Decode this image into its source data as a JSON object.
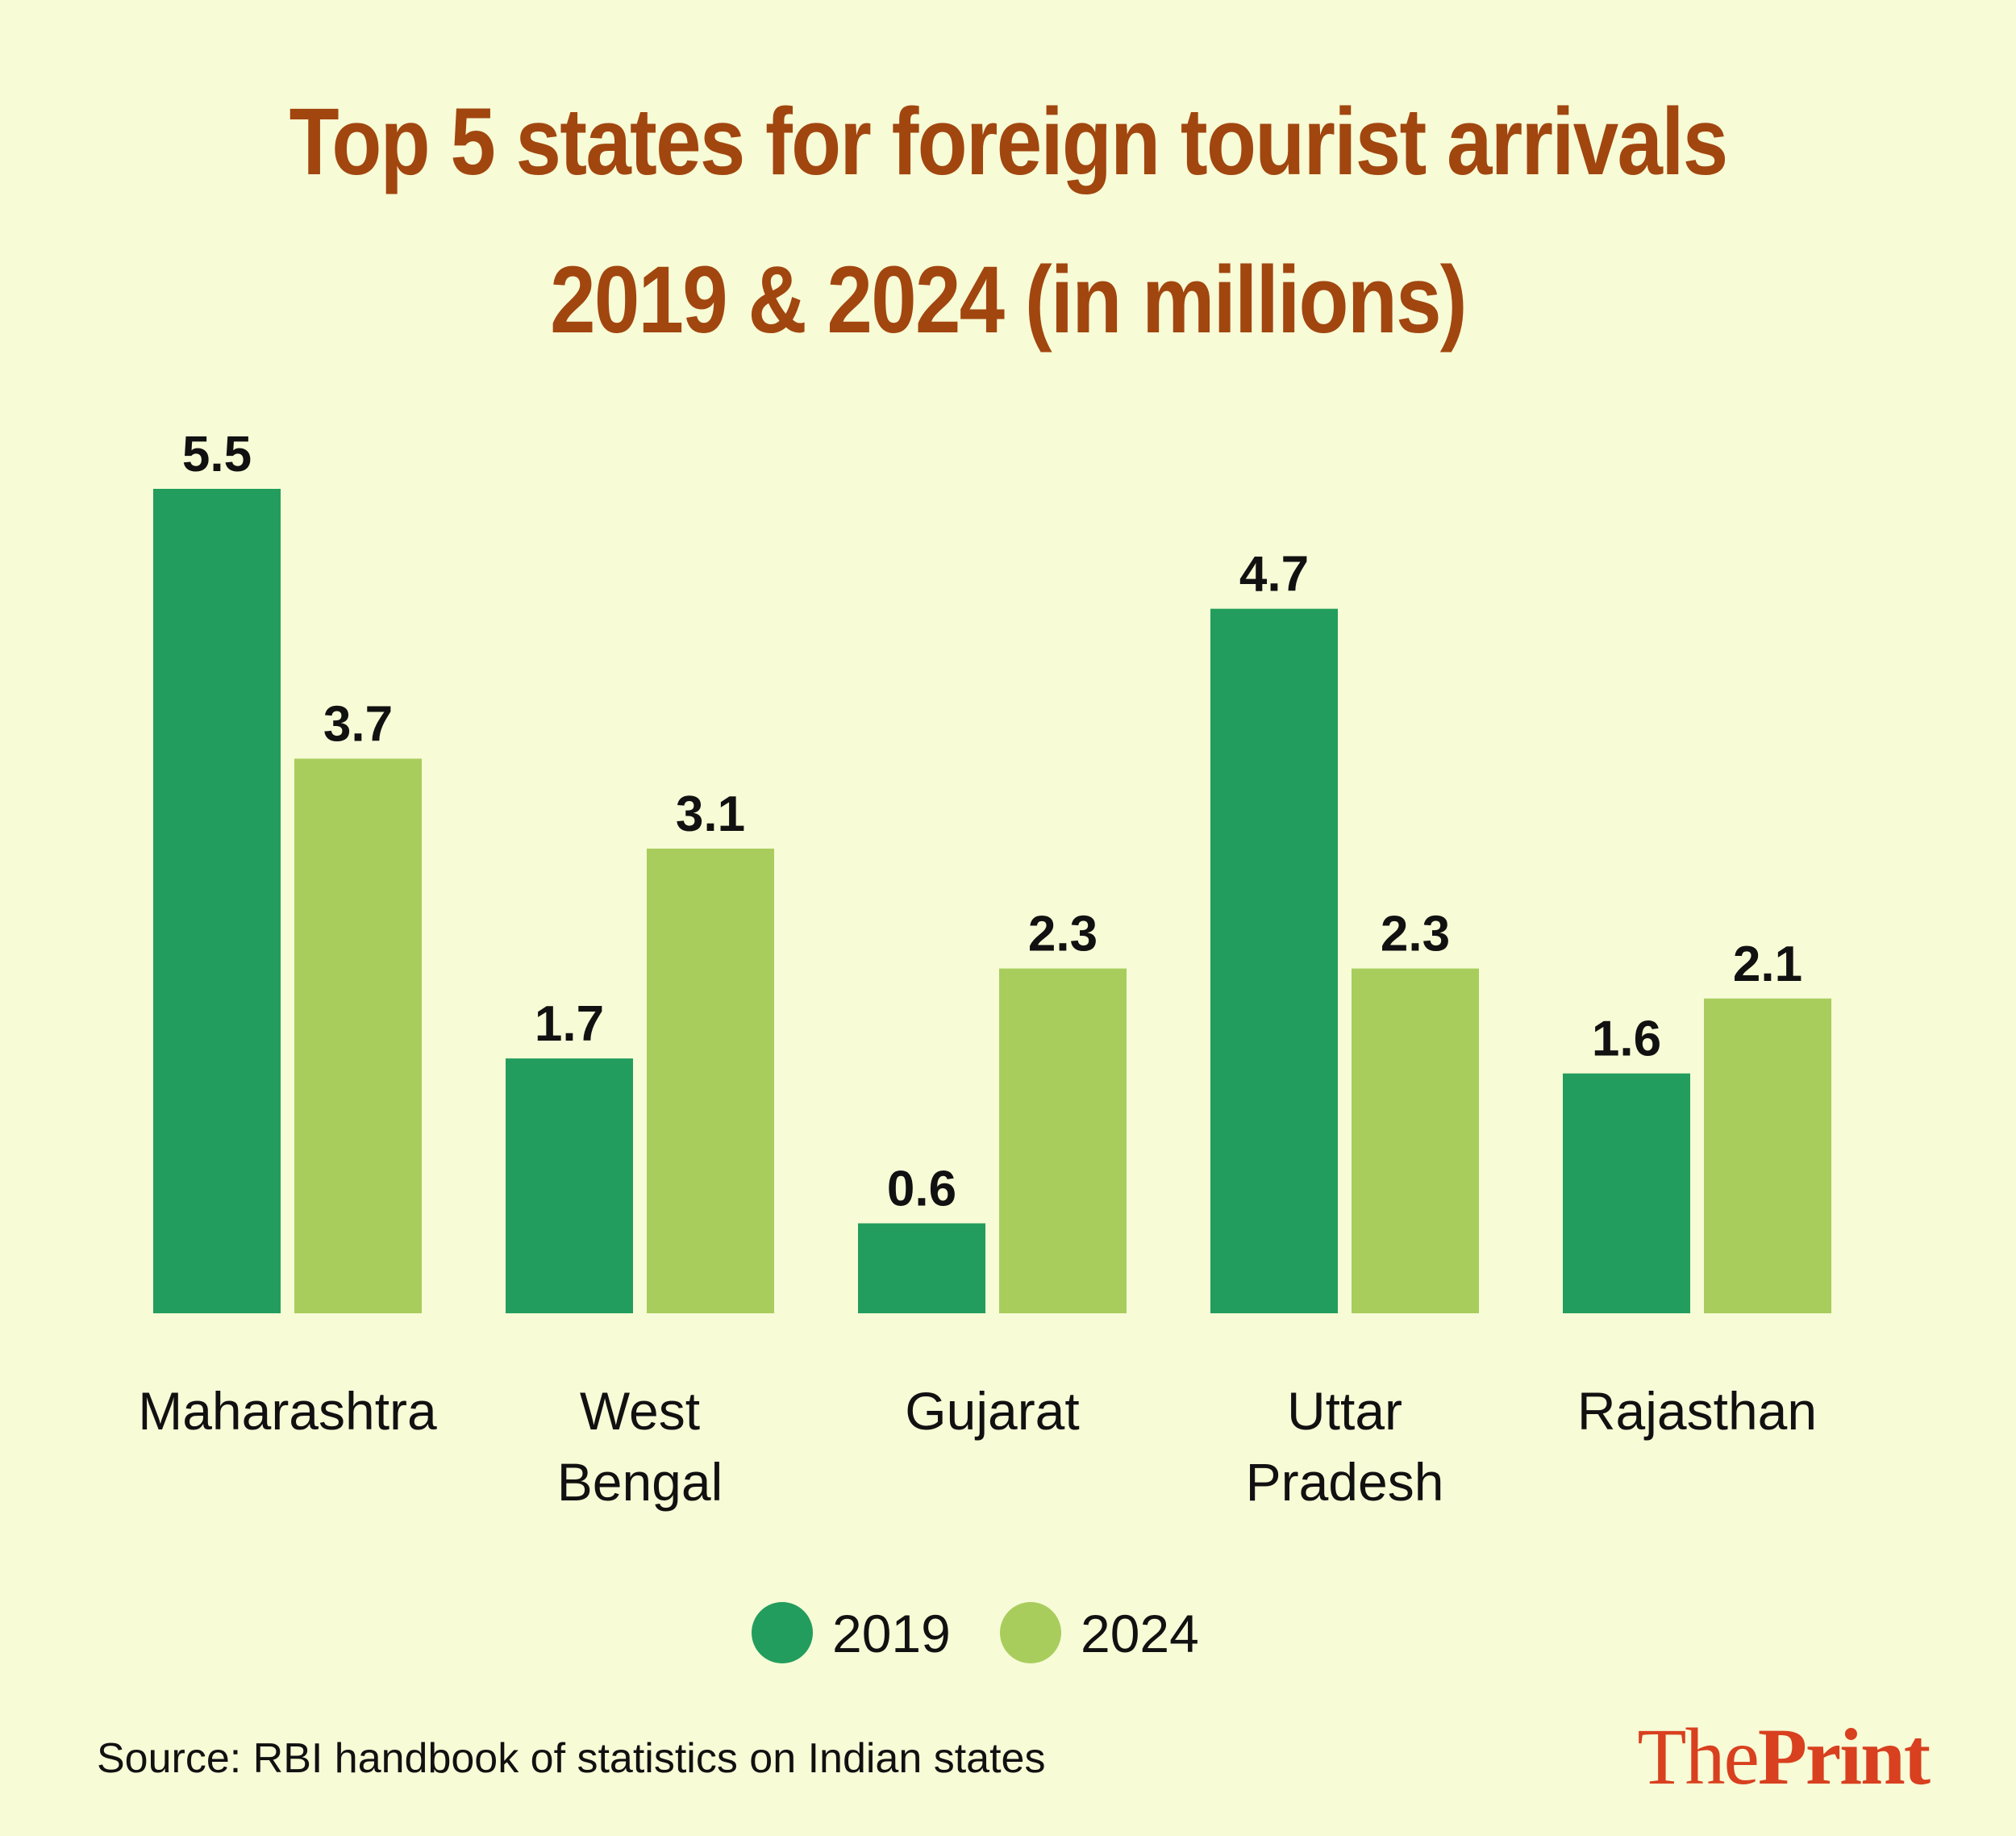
{
  "chart_data": {
    "type": "bar",
    "title": [
      "Top 5 states for foreign tourist arrivals",
      "2019 & 2024 (in millions)"
    ],
    "categories": [
      [
        "Maharashtra"
      ],
      [
        "West",
        "Bengal"
      ],
      [
        "Gujarat"
      ],
      [
        "Uttar",
        "Pradesh"
      ],
      [
        "Rajasthan"
      ]
    ],
    "series": [
      {
        "name": "2019",
        "values": [
          5.5,
          1.7,
          0.6,
          4.7,
          1.6
        ],
        "labels": [
          "5.5",
          "1.7",
          "0.6",
          "4.7",
          "1.6"
        ],
        "color": "#229d5d"
      },
      {
        "name": "2024",
        "values": [
          3.7,
          3.1,
          2.3,
          2.3,
          2.1
        ],
        "labels": [
          "3.7",
          "3.1",
          "2.3",
          "2.3",
          "2.1"
        ],
        "color": "#a8cd5d"
      }
    ],
    "xlabel": "",
    "ylabel": "",
    "ylim": [
      0,
      5.5
    ],
    "grid": false,
    "legend": "bottom-center"
  },
  "source": "Source: RBI handbook of statistics on Indian states",
  "brand": {
    "the": "The",
    "print": "Print"
  }
}
